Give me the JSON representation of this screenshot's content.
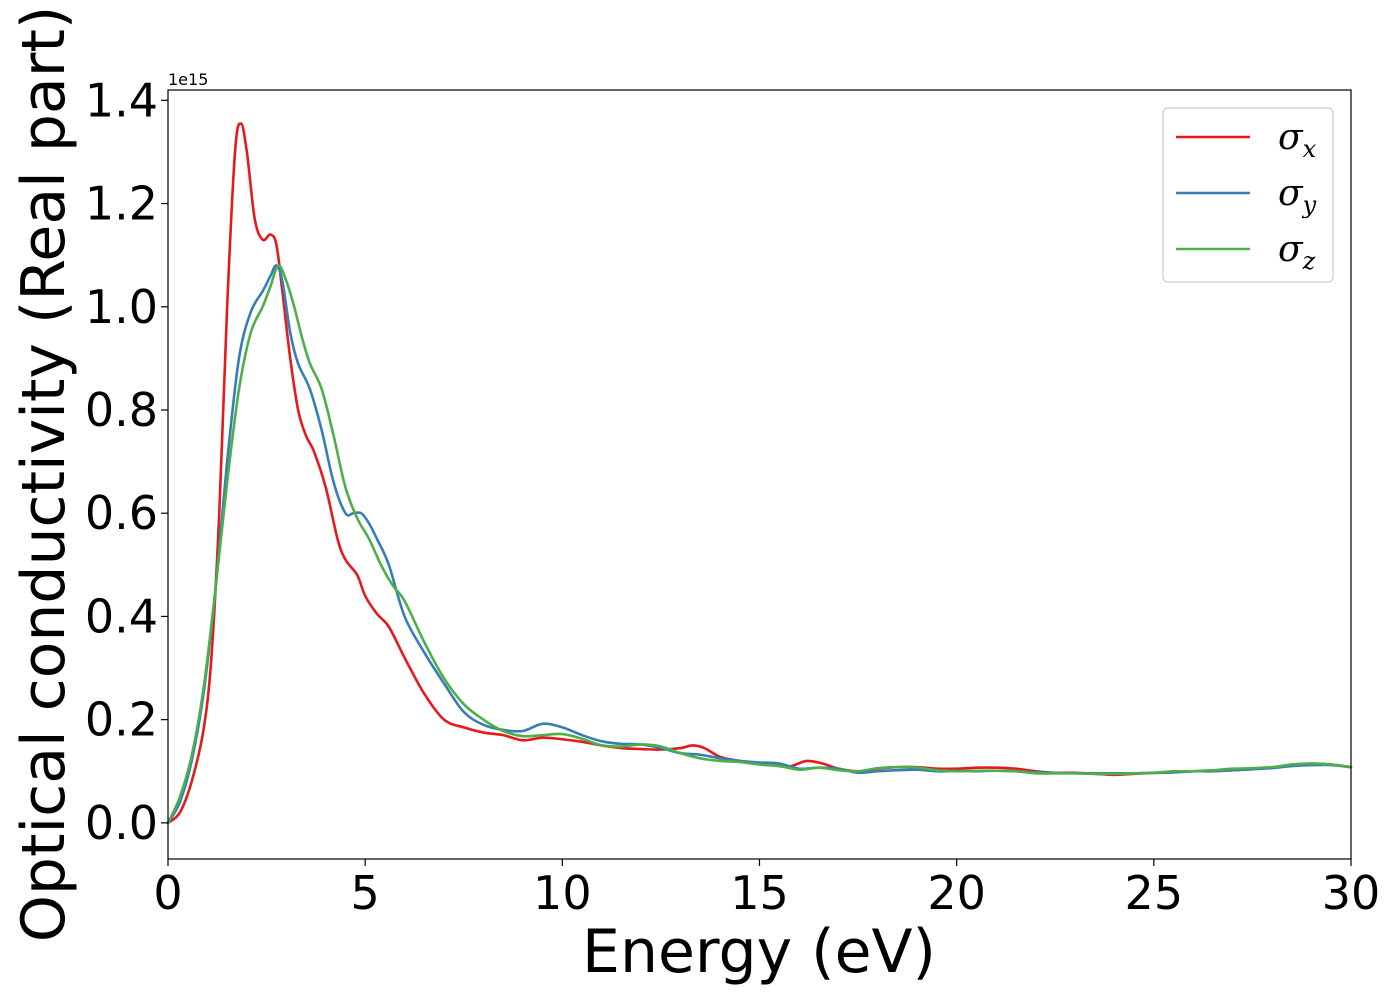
{
  "chart_data": {
    "type": "line",
    "xlabel": "Energy (eV)",
    "ylabel": "Optical conductivity (Real part)",
    "y_offset_label": "1e15",
    "xlim": [
      0,
      30
    ],
    "ylim": [
      -0.07,
      1.42
    ],
    "xticks": [
      0,
      5,
      10,
      15,
      20,
      25,
      30
    ],
    "xtick_labels": [
      "0",
      "5",
      "10",
      "15",
      "20",
      "25",
      "30"
    ],
    "yticks": [
      0.0,
      0.2,
      0.4,
      0.6,
      0.8,
      1.0,
      1.2,
      1.4
    ],
    "ytick_labels": [
      "0.0",
      "0.2",
      "0.4",
      "0.6",
      "0.8",
      "1.0",
      "1.2",
      "1.4"
    ],
    "grid": false,
    "legend_position": "top-right",
    "series": [
      {
        "name": "σx",
        "symbol": "σ",
        "subscript": "x",
        "color": "#e41a1c",
        "x": [
          0,
          0.3,
          0.6,
          0.9,
          1.1,
          1.3,
          1.5,
          1.7,
          1.85,
          2.0,
          2.2,
          2.4,
          2.6,
          2.75,
          2.9,
          3.1,
          3.3,
          3.5,
          3.7,
          4.0,
          4.3,
          4.5,
          4.8,
          5.0,
          5.3,
          5.6,
          6.0,
          6.5,
          7.0,
          7.5,
          8.0,
          8.5,
          9.0,
          9.5,
          10.0,
          10.5,
          11.0,
          11.5,
          12.0,
          12.5,
          13.0,
          13.3,
          13.6,
          14.0,
          14.5,
          15.0,
          15.5,
          15.8,
          16.2,
          16.6,
          17.0,
          17.5,
          18.0,
          18.5,
          19.0,
          19.5,
          20.0,
          20.5,
          21.0,
          21.5,
          22.0,
          22.5,
          23.0,
          23.5,
          24.0,
          24.5,
          25.0,
          25.5,
          26.0,
          26.5,
          27.0,
          27.5,
          28.0,
          28.5,
          29.0,
          29.5,
          30.0
        ],
        "y": [
          0.0,
          0.02,
          0.08,
          0.18,
          0.32,
          0.6,
          1.0,
          1.3,
          1.355,
          1.3,
          1.17,
          1.13,
          1.14,
          1.12,
          1.03,
          0.9,
          0.8,
          0.75,
          0.72,
          0.65,
          0.55,
          0.51,
          0.48,
          0.44,
          0.405,
          0.38,
          0.32,
          0.25,
          0.2,
          0.185,
          0.175,
          0.17,
          0.16,
          0.165,
          0.162,
          0.157,
          0.15,
          0.145,
          0.143,
          0.142,
          0.145,
          0.15,
          0.145,
          0.128,
          0.12,
          0.115,
          0.11,
          0.11,
          0.12,
          0.115,
          0.105,
          0.1,
          0.105,
          0.108,
          0.108,
          0.105,
          0.105,
          0.107,
          0.107,
          0.105,
          0.1,
          0.097,
          0.097,
          0.095,
          0.093,
          0.095,
          0.097,
          0.098,
          0.1,
          0.1,
          0.102,
          0.104,
          0.107,
          0.113,
          0.115,
          0.113,
          0.108
        ]
      },
      {
        "name": "σy",
        "symbol": "σ",
        "subscript": "y",
        "color": "#377eb8",
        "x": [
          0,
          0.3,
          0.6,
          0.9,
          1.2,
          1.5,
          1.8,
          2.1,
          2.4,
          2.6,
          2.75,
          2.9,
          3.1,
          3.3,
          3.6,
          3.9,
          4.2,
          4.5,
          4.7,
          4.9,
          5.1,
          5.3,
          5.6,
          6.0,
          6.5,
          7.0,
          7.5,
          8.0,
          8.5,
          9.0,
          9.5,
          10.0,
          10.5,
          11.0,
          11.5,
          12.0,
          12.5,
          13.0,
          13.5,
          14.0,
          14.5,
          15.0,
          15.5,
          16.0,
          16.5,
          17.0,
          17.5,
          18.0,
          18.5,
          19.0,
          19.5,
          20.0,
          20.5,
          21.0,
          21.5,
          22.0,
          22.5,
          23.0,
          23.5,
          24.0,
          24.5,
          25.0,
          25.5,
          26.0,
          26.5,
          27.0,
          27.5,
          28.0,
          28.5,
          29.0,
          29.5,
          30.0
        ],
        "y": [
          0.0,
          0.04,
          0.12,
          0.25,
          0.45,
          0.7,
          0.9,
          0.99,
          1.03,
          1.06,
          1.08,
          1.05,
          0.95,
          0.89,
          0.84,
          0.76,
          0.66,
          0.6,
          0.6,
          0.6,
          0.58,
          0.55,
          0.5,
          0.4,
          0.33,
          0.27,
          0.215,
          0.19,
          0.18,
          0.178,
          0.192,
          0.185,
          0.17,
          0.158,
          0.153,
          0.152,
          0.145,
          0.135,
          0.132,
          0.125,
          0.12,
          0.117,
          0.115,
          0.105,
          0.107,
          0.105,
          0.097,
          0.1,
          0.102,
          0.103,
          0.1,
          0.101,
          0.1,
          0.101,
          0.1,
          0.098,
          0.097,
          0.096,
          0.096,
          0.096,
          0.096,
          0.097,
          0.098,
          0.1,
          0.1,
          0.102,
          0.104,
          0.106,
          0.11,
          0.112,
          0.112,
          0.108
        ]
      },
      {
        "name": "σz",
        "symbol": "σ",
        "subscript": "z",
        "color": "#4daf4a",
        "x": [
          0,
          0.3,
          0.6,
          0.9,
          1.2,
          1.5,
          1.8,
          2.1,
          2.4,
          2.6,
          2.8,
          3.0,
          3.2,
          3.4,
          3.6,
          3.9,
          4.2,
          4.5,
          4.8,
          5.1,
          5.4,
          5.7,
          6.0,
          6.5,
          7.0,
          7.5,
          8.0,
          8.5,
          9.0,
          9.5,
          10.0,
          10.5,
          11.0,
          11.5,
          12.0,
          12.5,
          13.0,
          13.5,
          14.0,
          14.5,
          15.0,
          15.5,
          16.0,
          16.5,
          17.0,
          17.5,
          18.0,
          18.5,
          19.0,
          19.5,
          20.0,
          20.5,
          21.0,
          21.5,
          22.0,
          22.5,
          23.0,
          23.5,
          24.0,
          24.5,
          25.0,
          25.5,
          26.0,
          26.5,
          27.0,
          27.5,
          28.0,
          28.5,
          29.0,
          29.5,
          30.0
        ],
        "y": [
          0.0,
          0.05,
          0.13,
          0.26,
          0.45,
          0.66,
          0.84,
          0.95,
          1.0,
          1.04,
          1.08,
          1.05,
          1.0,
          0.94,
          0.89,
          0.84,
          0.75,
          0.65,
          0.59,
          0.55,
          0.5,
          0.46,
          0.43,
          0.35,
          0.28,
          0.23,
          0.2,
          0.178,
          0.168,
          0.17,
          0.172,
          0.163,
          0.15,
          0.148,
          0.152,
          0.148,
          0.135,
          0.125,
          0.12,
          0.118,
          0.113,
          0.11,
          0.103,
          0.107,
          0.102,
          0.1,
          0.106,
          0.108,
          0.107,
          0.102,
          0.1,
          0.101,
          0.101,
          0.1,
          0.096,
          0.096,
          0.096,
          0.095,
          0.095,
          0.096,
          0.097,
          0.1,
          0.1,
          0.102,
          0.105,
          0.106,
          0.108,
          0.113,
          0.115,
          0.113,
          0.108
        ]
      }
    ]
  }
}
